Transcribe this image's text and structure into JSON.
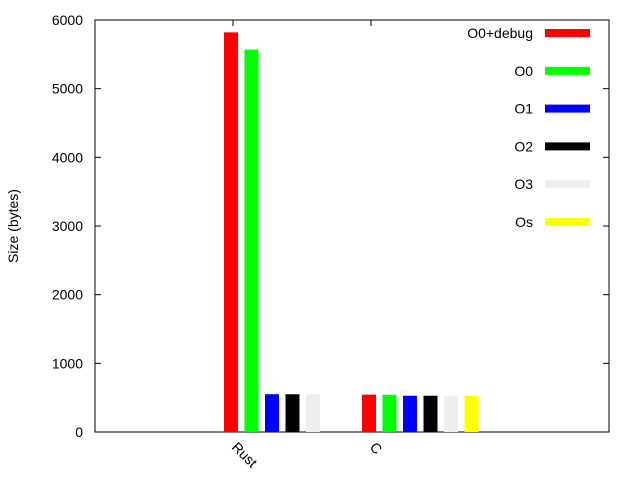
{
  "chart_data": {
    "type": "bar",
    "title": "",
    "xlabel": "",
    "ylabel": "Size (bytes)",
    "ylim": [
      0,
      6000
    ],
    "yticks": [
      0,
      1000,
      2000,
      3000,
      4000,
      5000,
      6000
    ],
    "grid": false,
    "legend_position": "top-right",
    "categories": [
      "Rust",
      "C"
    ],
    "series": [
      {
        "name": "O0+debug",
        "color": "#ff0000",
        "values": [
          5820,
          544
        ]
      },
      {
        "name": "O0",
        "color": "#00ff00",
        "values": [
          5570,
          542
        ]
      },
      {
        "name": "O1",
        "color": "#0000ff",
        "values": [
          550,
          528
        ]
      },
      {
        "name": "O2",
        "color": "#000000",
        "values": [
          550,
          528
        ]
      },
      {
        "name": "O3",
        "color": "#eeeeee",
        "values": [
          550,
          528
        ]
      },
      {
        "name": "Os",
        "color": "#ffff00",
        "values": [
          null,
          528
        ]
      }
    ]
  }
}
